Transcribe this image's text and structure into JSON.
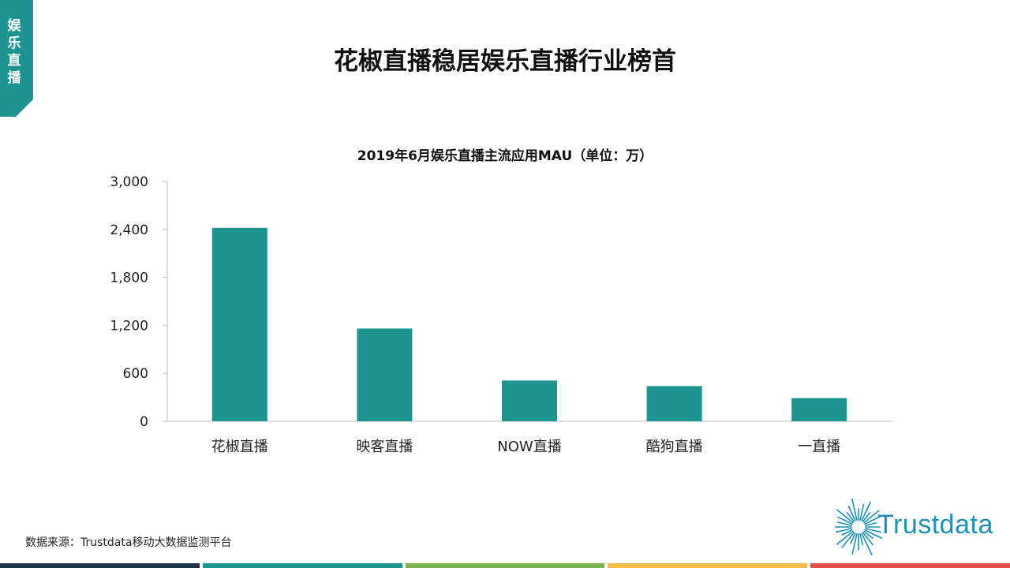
{
  "section_tab": {
    "label": "娱乐直播",
    "color": "#1E9491"
  },
  "slide_title": "花椒直播稳居娱乐直播行业榜首",
  "source_note": "数据来源：Trustdata移动大数据监测平台",
  "logo": {
    "text": "Trustdata",
    "icon": "sunburst-logo-icon",
    "color": "#1E90B6"
  },
  "footer_colors": [
    "#1F3446",
    "#1E9491",
    "#7BB552",
    "#F5BE4A",
    "#E2524A"
  ],
  "chart_data": {
    "type": "bar",
    "title": "2019年6月娱乐直播主流应用MAU（单位：万）",
    "categories": [
      "花椒直播",
      "映客直播",
      "NOW直播",
      "酷狗直播",
      "一直播"
    ],
    "values": [
      2420,
      1160,
      510,
      440,
      290
    ],
    "ylim": [
      0,
      3000
    ],
    "yticks": [
      0,
      600,
      1200,
      1800,
      2400,
      3000
    ],
    "ytick_labels": [
      "0",
      "600",
      "1,200",
      "1,800",
      "2,400",
      "3,000"
    ],
    "bar_color": "#1E9491",
    "grid": false,
    "legend": "none"
  }
}
